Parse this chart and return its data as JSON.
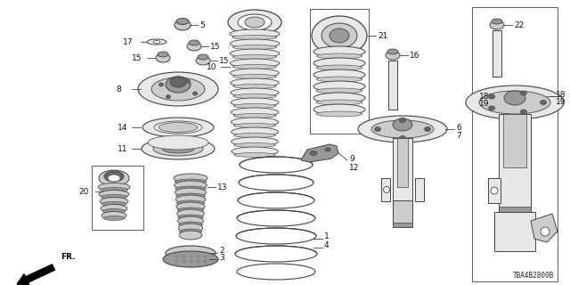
{
  "bg_color": "#ffffff",
  "diagram_code": "TBA4B2800B",
  "lc": "#444444",
  "fc_light": "#e8e8e8",
  "fc_mid": "#cccccc",
  "fc_dark": "#999999",
  "fc_vdark": "#666666",
  "fs": 6.5,
  "fs_small": 5.5
}
